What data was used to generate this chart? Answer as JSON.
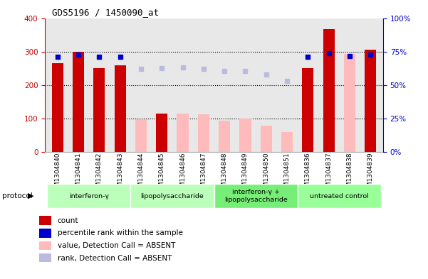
{
  "title": "GDS5196 / 1450090_at",
  "samples": [
    "GSM1304840",
    "GSM1304841",
    "GSM1304842",
    "GSM1304843",
    "GSM1304844",
    "GSM1304845",
    "GSM1304846",
    "GSM1304847",
    "GSM1304848",
    "GSM1304849",
    "GSM1304850",
    "GSM1304851",
    "GSM1304836",
    "GSM1304837",
    "GSM1304838",
    "GSM1304839"
  ],
  "count_values": [
    265,
    300,
    250,
    260,
    null,
    115,
    null,
    null,
    null,
    null,
    null,
    null,
    250,
    368,
    null,
    305
  ],
  "absent_value_bars": [
    null,
    null,
    null,
    null,
    98,
    null,
    115,
    112,
    93,
    100,
    78,
    60,
    null,
    null,
    293,
    null
  ],
  "percentile_rank_present": [
    285,
    290,
    285,
    285,
    null,
    null,
    null,
    null,
    null,
    null,
    null,
    null,
    285,
    295,
    287,
    290
  ],
  "percentile_rank_absent": [
    null,
    null,
    null,
    null,
    248,
    250,
    252,
    248,
    243,
    242,
    232,
    212,
    null,
    null,
    null,
    null
  ],
  "group_boundaries": [
    {
      "start": 0,
      "end": 3,
      "label": "interferon-γ",
      "color": "#bbffbb"
    },
    {
      "start": 4,
      "end": 7,
      "label": "lipopolysaccharide",
      "color": "#bbffbb"
    },
    {
      "start": 8,
      "end": 11,
      "label": "interferon-γ +\nlipopolysaccharide",
      "color": "#77ee77"
    },
    {
      "start": 12,
      "end": 15,
      "label": "untreated control",
      "color": "#99ff99"
    }
  ],
  "ylim_left": [
    0,
    400
  ],
  "ylim_right": [
    0,
    100
  ],
  "yticks_left": [
    0,
    100,
    200,
    300,
    400
  ],
  "yticks_right": [
    0,
    25,
    50,
    75,
    100
  ],
  "ytick_labels_right": [
    "0%",
    "25%",
    "50%",
    "75%",
    "100%"
  ],
  "left_axis_color": "#cc0000",
  "right_axis_color": "#0000cc",
  "bar_bg_color": "#e8e8e8",
  "legend_items": [
    {
      "label": "count",
      "color": "#cc0000"
    },
    {
      "label": "percentile rank within the sample",
      "color": "#0000cc"
    },
    {
      "label": "value, Detection Call = ABSENT",
      "color": "#ffbbbb"
    },
    {
      "label": "rank, Detection Call = ABSENT",
      "color": "#bbbbdd"
    }
  ]
}
